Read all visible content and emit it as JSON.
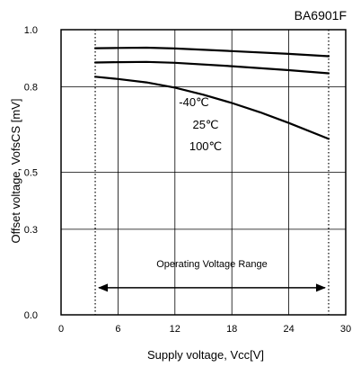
{
  "part_number": "BA6901F",
  "chart_data": {
    "type": "line",
    "xlabel": "Supply voltage, Vcc[V]",
    "ylabel": "Offset voltage, VofsCS [mV]",
    "xlim": [
      0,
      30
    ],
    "ylim": [
      0.0,
      1.0
    ],
    "x_ticks": [
      0,
      6,
      12,
      18,
      24,
      30
    ],
    "y_ticks": [
      0.0,
      0.3,
      0.5,
      0.8,
      1.0
    ],
    "y_tick_labels": [
      "0.0",
      "0.3",
      "0.5",
      "0.8",
      "1.0"
    ],
    "grid": true,
    "series": [
      {
        "name": "-40℃",
        "x": [
          3.6,
          6,
          9,
          12,
          18,
          24,
          28.2
        ],
        "y": [
          0.935,
          0.936,
          0.937,
          0.934,
          0.925,
          0.915,
          0.907
        ]
      },
      {
        "name": "25℃",
        "x": [
          3.6,
          6,
          9,
          12,
          18,
          24,
          28.2
        ],
        "y": [
          0.885,
          0.886,
          0.887,
          0.884,
          0.872,
          0.858,
          0.847
        ]
      },
      {
        "name": "100℃",
        "x": [
          3.6,
          6,
          9,
          12,
          15,
          18,
          21,
          24,
          28.2
        ],
        "y": [
          0.835,
          0.827,
          0.815,
          0.797,
          0.772,
          0.743,
          0.71,
          0.673,
          0.617
        ]
      }
    ],
    "operating_range": {
      "label": "Operating Voltage Range",
      "x_min": 3.6,
      "x_max": 28.2,
      "arrow_y": 0.095
    }
  }
}
